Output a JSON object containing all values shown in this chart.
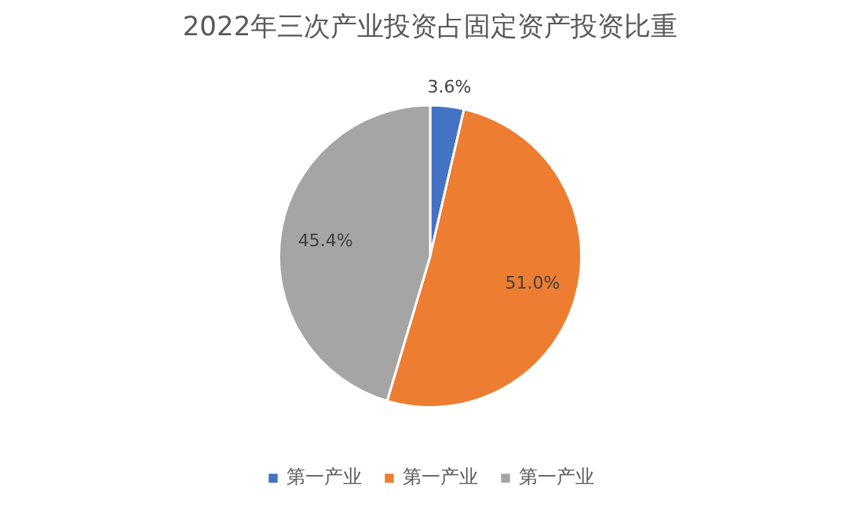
{
  "chart_data": {
    "type": "pie",
    "title": "2022年三次产业投资占固定资产投资比重",
    "categories": [
      "第一产业",
      "第一产业",
      "第一产业"
    ],
    "values": [
      3.6,
      51.0,
      45.4
    ],
    "colors": [
      "#4472c4",
      "#ed7d31",
      "#a5a5a5"
    ],
    "value_labels": [
      "3.6%",
      "51.0%",
      "45.4%"
    ],
    "legend": "bottom"
  }
}
